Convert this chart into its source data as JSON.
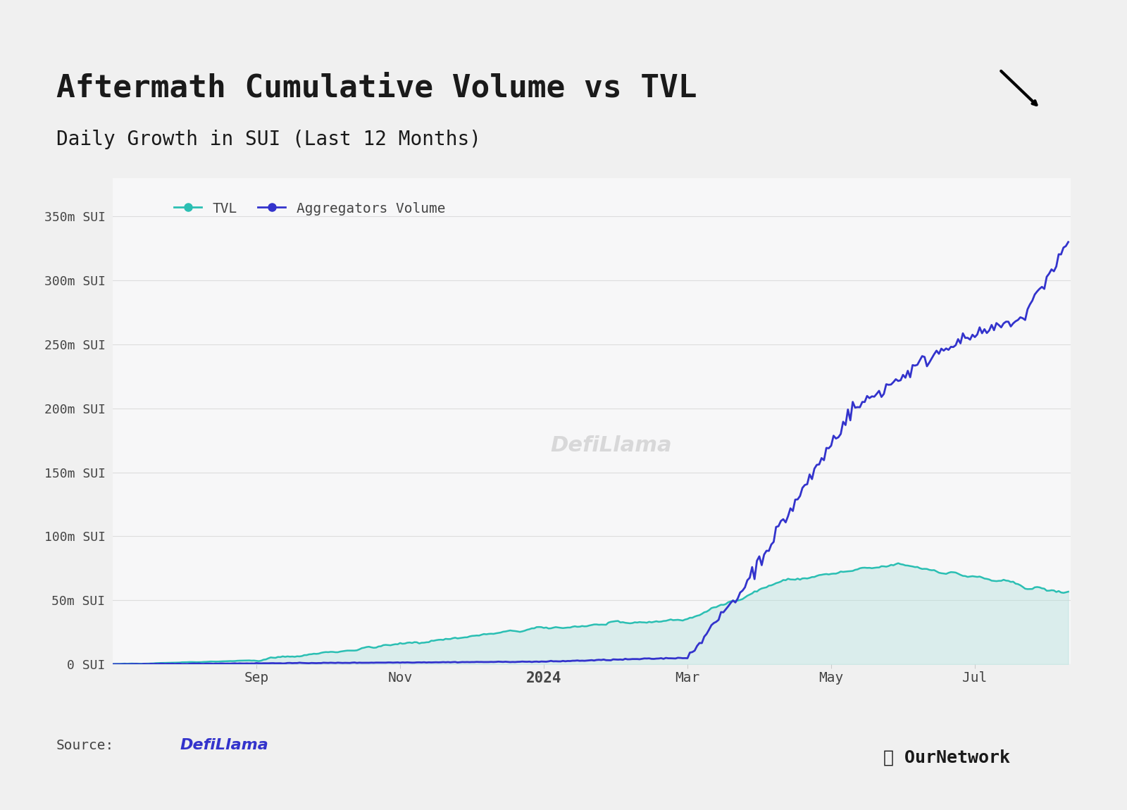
{
  "title": "Aftermath Cumulative Volume vs TVL",
  "subtitle": "Daily Growth in SUI (Last 12 Months)",
  "background_color": "#f0f0f0",
  "chart_bg": "#f7f7f8",
  "title_fontsize": 32,
  "subtitle_fontsize": 20,
  "ytick_labels": [
    "0 SUI",
    "50m SUI",
    "100m SUI",
    "150m SUI",
    "200m SUI",
    "250m SUI",
    "300m SUI",
    "350m SUI"
  ],
  "ytick_values": [
    0,
    50,
    100,
    150,
    200,
    250,
    300,
    350
  ],
  "xtick_labels": [
    "Sep",
    "Nov",
    "2024",
    "Mar",
    "May",
    "Jul"
  ],
  "tvl_color": "#2bbfb3",
  "tvl_fill_color": "#b0e0dc",
  "volume_color": "#3333cc",
  "logo_bg": "#4ade80",
  "source_text": "Source:",
  "legend_tvl": "TVL",
  "legend_vol": "Aggregators Volume"
}
